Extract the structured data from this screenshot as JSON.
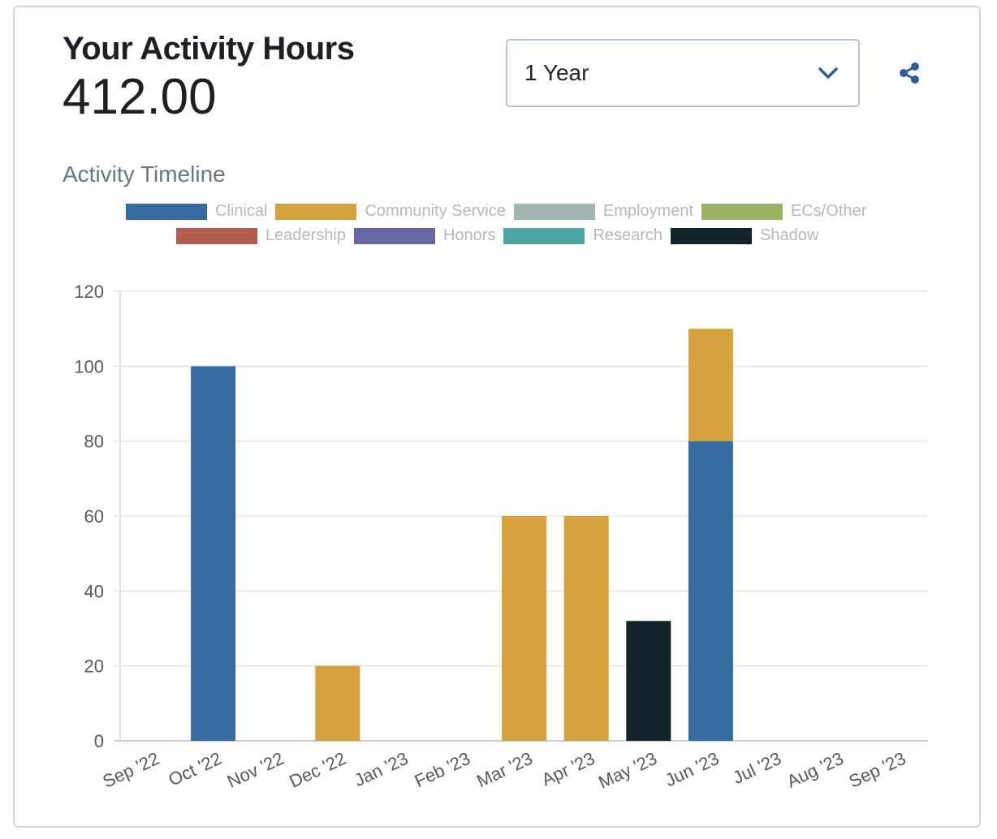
{
  "header": {
    "title": "Your Activity Hours",
    "total_hours": "412.00"
  },
  "period_select": {
    "value": "1 Year"
  },
  "share_icon": "share-icon",
  "chart_data": {
    "type": "bar",
    "stacked": true,
    "title": "Activity Timeline",
    "categories": [
      "Sep '22",
      "Oct '22",
      "Nov '22",
      "Dec '22",
      "Jan '23",
      "Feb '23",
      "Mar '23",
      "Apr '23",
      "May '23",
      "Jun '23",
      "Jul '23",
      "Aug '23",
      "Sep '23"
    ],
    "series": [
      {
        "name": "Clinical",
        "color": "#376ba4",
        "values": [
          0,
          100,
          0,
          0,
          0,
          0,
          0,
          0,
          0,
          80,
          0,
          0,
          0
        ]
      },
      {
        "name": "Community Service",
        "color": "#d6a23d",
        "values": [
          0,
          0,
          0,
          20,
          0,
          0,
          60,
          60,
          0,
          30,
          0,
          0,
          0
        ]
      },
      {
        "name": "Employment",
        "color": "#a3b5b3",
        "values": [
          0,
          0,
          0,
          0,
          0,
          0,
          0,
          0,
          0,
          0,
          0,
          0,
          0
        ]
      },
      {
        "name": "ECs/Other",
        "color": "#9cb366",
        "values": [
          0,
          0,
          0,
          0,
          0,
          0,
          0,
          0,
          0,
          0,
          0,
          0,
          0
        ]
      },
      {
        "name": "Leadership",
        "color": "#b45b4f",
        "values": [
          0,
          0,
          0,
          0,
          0,
          0,
          0,
          0,
          0,
          0,
          0,
          0,
          0
        ]
      },
      {
        "name": "Honors",
        "color": "#6767a3",
        "values": [
          0,
          0,
          0,
          0,
          0,
          0,
          0,
          0,
          0,
          0,
          0,
          0,
          0
        ]
      },
      {
        "name": "Research",
        "color": "#4ca5a4",
        "values": [
          0,
          0,
          0,
          0,
          0,
          0,
          0,
          0,
          0,
          0,
          0,
          0,
          0
        ]
      },
      {
        "name": "Shadow",
        "color": "#12232a",
        "values": [
          0,
          0,
          0,
          0,
          0,
          0,
          0,
          0,
          32,
          0,
          0,
          0,
          0
        ]
      }
    ],
    "yticks": [
      0,
      20,
      40,
      60,
      80,
      100,
      120
    ],
    "ylim": [
      0,
      120
    ],
    "grid": true,
    "legend_position": "top"
  }
}
